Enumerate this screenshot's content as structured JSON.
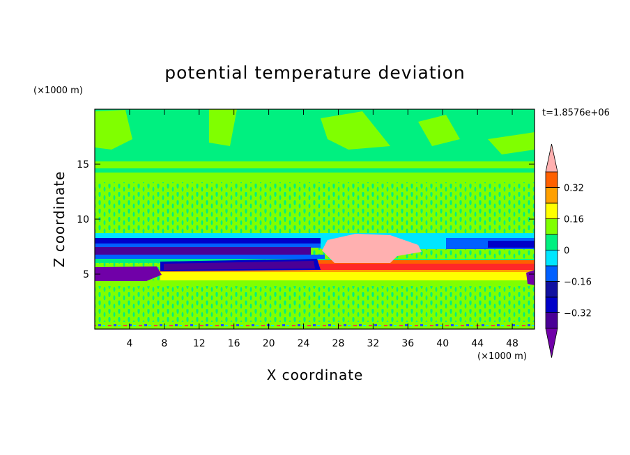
{
  "chart_data": {
    "type": "contour",
    "title": "potential temperature deviation",
    "x_label": "X coordinate",
    "y_label": "Z coordinate",
    "x_unit": "(×1000 m)",
    "y_unit": "(×1000 m)",
    "annotation": "t=1.8576e+06",
    "xlim": [
      0,
      50.56
    ],
    "ylim": [
      0,
      20
    ],
    "xticks": [
      4,
      8,
      12,
      16,
      20,
      24,
      28,
      32,
      36,
      40,
      44,
      48
    ],
    "yticks": [
      5,
      10,
      15
    ],
    "colorbar": {
      "levels": [
        -0.4,
        -0.32,
        -0.24,
        -0.16,
        -0.08,
        0,
        0.08,
        0.16,
        0.24,
        0.32,
        0.4
      ],
      "colors": [
        "#4a0096",
        "#0000c8",
        "#1010a0",
        "#0060ff",
        "#00e6ff",
        "#00f080",
        "#80ff00",
        "#ffff00",
        "#ffa000",
        "#ff6000",
        "#ff2828"
      ],
      "under_color": "#7000a8",
      "over_color": "#ffb0b0",
      "ticks": [
        0.32,
        0.16,
        0,
        {
          "value": -0.16,
          "label": "−0.16"
        },
        {
          "value": -0.32,
          "label": "−0.32"
        }
      ]
    }
  }
}
